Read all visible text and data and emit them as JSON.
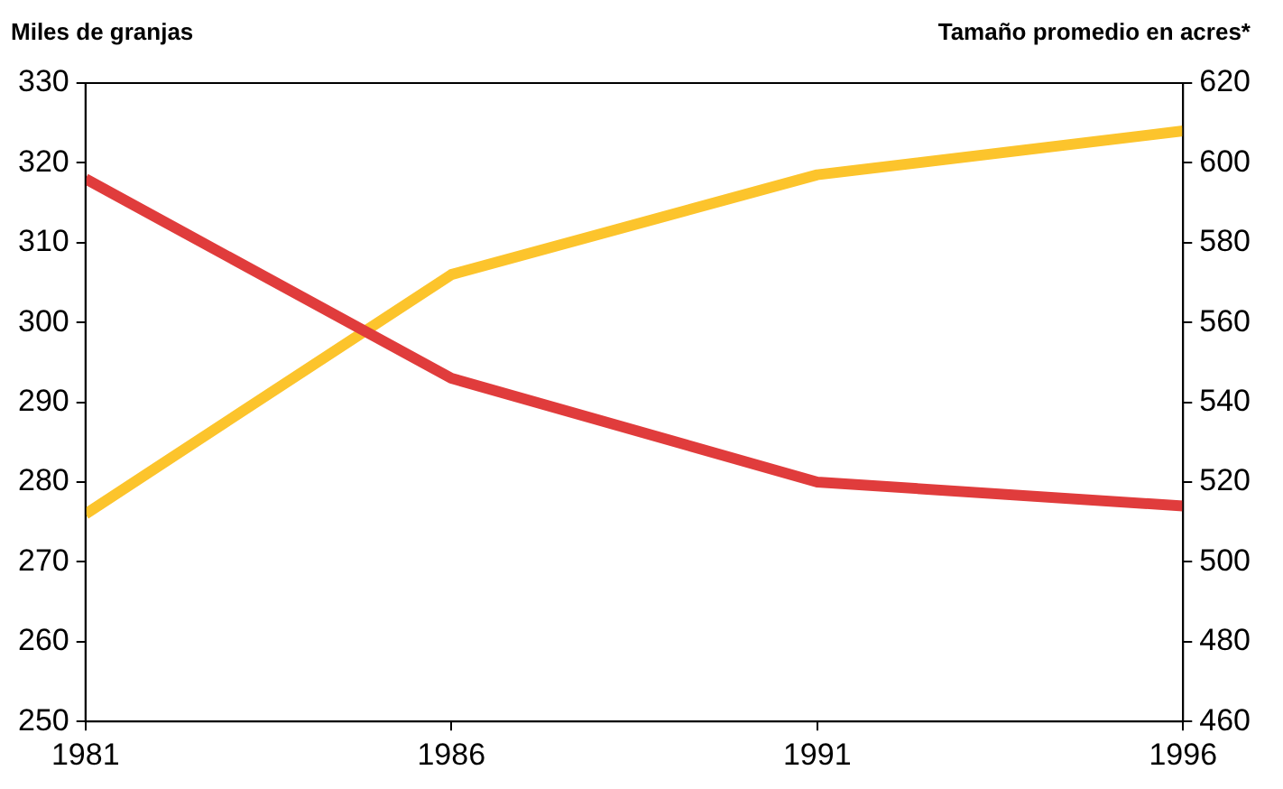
{
  "chart_data": {
    "type": "line",
    "ylabel": "Miles de granjas",
    "y2label": "Tamaño promedio en acres*",
    "x": [
      1981,
      1986,
      1991,
      1996
    ],
    "xlim": [
      1981,
      1996
    ],
    "xticks": [
      1981,
      1986,
      1991,
      1996
    ],
    "series": [
      {
        "color": "#e03c3c",
        "values": [
          318,
          293,
          280,
          277
        ]
      },
      {
        "color": "#fcc42c",
        "values": [
          512,
          572,
          597,
          608
        ],
        "axis": "y2"
      }
    ],
    "ylim": [
      250,
      330
    ],
    "yticks": [
      250,
      260,
      270,
      280,
      290,
      300,
      310,
      320,
      330
    ],
    "y2lim": [
      460,
      620
    ],
    "y2ticks": [
      460,
      480,
      500,
      520,
      540,
      560,
      580,
      600,
      620
    ],
    "grid": false,
    "legend": false,
    "marker": "none",
    "line_style": "solid"
  }
}
